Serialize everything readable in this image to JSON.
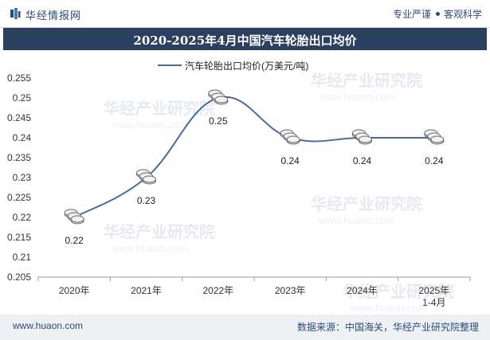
{
  "header": {
    "site_name": "华经情报网",
    "tagline_left": "专业严谨",
    "tagline_right": "客观科学"
  },
  "watermark": {
    "text_cn": "华经产业研究院",
    "text_url": "www.huaon.com"
  },
  "footer": {
    "url": "www.huaon.com",
    "source": "数据来源：中国海关，华经产业研究院整理"
  },
  "colors": {
    "line": "#4a6b9a",
    "title_bg": "#2b3f5f",
    "accent": "#2c4a7a"
  },
  "chart_data": {
    "type": "line",
    "title": "2020-2025年4月中国汽车轮胎出口均价",
    "categories": [
      "2020年",
      "2021年",
      "2022年",
      "2023年",
      "2024年",
      "2025年 1-4月"
    ],
    "series": [
      {
        "name": "汽车轮胎出口均价(万美元/吨)",
        "values": [
          0.22,
          0.23,
          0.25,
          0.24,
          0.24,
          0.24
        ],
        "labels": [
          "0.22",
          "0.23",
          "0.25",
          "0.24",
          "0.24",
          "0.24"
        ]
      }
    ],
    "ylim": [
      0.205,
      0.255
    ],
    "yticks": [
      "0.255",
      "0.25",
      "0.245",
      "0.24",
      "0.235",
      "0.23",
      "0.225",
      "0.22",
      "0.215",
      "0.21",
      "0.205"
    ],
    "xlabel": "",
    "ylabel": "",
    "legend_position": "top-center"
  }
}
